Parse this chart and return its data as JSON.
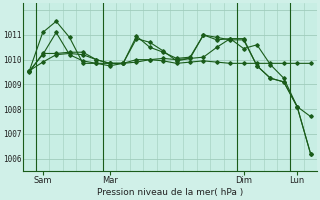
{
  "background_color": "#d0f0e8",
  "plot_bg_color": "#c8eee4",
  "grid_color": "#a0ccbc",
  "line_color": "#1a5c1a",
  "xlabel": "Pression niveau de la mer( hPa )",
  "ylim": [
    1005.5,
    1012.3
  ],
  "xlim": [
    -0.5,
    21.5
  ],
  "ytick_positions": [
    1006,
    1007,
    1008,
    1009,
    1010,
    1011
  ],
  "ytick_labels": [
    "1006",
    "1007",
    "1008",
    "1009",
    "1010",
    "1011"
  ],
  "xtick_positions": [
    1,
    6,
    16,
    20
  ],
  "xtick_labels": [
    "Sam",
    "Mar",
    "Dim",
    "Lun"
  ],
  "vlines_x": [
    0.5,
    5.5,
    15.5,
    19.5
  ],
  "num_xgrid": 22,
  "series": [
    [
      0,
      1009.55,
      1,
      1009.9,
      2,
      1010.2,
      3,
      1010.25,
      4,
      1010.2,
      5,
      1010.0,
      6,
      1009.85,
      7,
      1009.85,
      8,
      1009.9,
      9,
      1010.0,
      10,
      1009.95,
      11,
      1009.85,
      12,
      1009.9,
      13,
      1009.95,
      14,
      1009.9,
      15,
      1009.85,
      16,
      1009.85,
      17,
      1009.85,
      18,
      1009.85,
      19,
      1009.85,
      20,
      1009.85,
      21,
      1009.85
    ],
    [
      0,
      1009.5,
      1,
      1010.25,
      2,
      1010.25,
      3,
      1010.3,
      4,
      1010.3,
      5,
      1010.0,
      6,
      1009.85,
      7,
      1009.85,
      8,
      1010.0,
      9,
      1010.0,
      10,
      1010.05,
      11,
      1010.0,
      12,
      1010.05,
      13,
      1010.1,
      14,
      1010.5,
      15,
      1010.85,
      16,
      1010.45,
      17,
      1010.6,
      18,
      1009.8,
      19,
      1009.25,
      20,
      1008.1,
      21,
      1007.7
    ],
    [
      0,
      1009.55,
      1,
      1011.1,
      2,
      1011.55,
      3,
      1010.9,
      4,
      1009.85,
      5,
      1009.85,
      6,
      1009.75,
      7,
      1009.85,
      8,
      1010.85,
      9,
      1010.7,
      10,
      1010.35,
      11,
      1009.95,
      12,
      1010.05,
      13,
      1011.0,
      14,
      1010.8,
      15,
      1010.85,
      16,
      1010.85,
      17,
      1009.75,
      18,
      1009.25,
      19,
      1009.1,
      20,
      1008.1,
      21,
      1006.2
    ],
    [
      0,
      1009.55,
      1,
      1010.2,
      2,
      1011.1,
      3,
      1010.2,
      4,
      1009.95,
      5,
      1009.85,
      6,
      1009.85,
      7,
      1009.85,
      8,
      1010.95,
      9,
      1010.5,
      10,
      1010.3,
      11,
      1010.05,
      12,
      1010.1,
      13,
      1011.0,
      14,
      1010.9,
      15,
      1010.8,
      16,
      1010.8,
      17,
      1009.75,
      18,
      1009.25,
      19,
      1009.1,
      20,
      1008.1,
      21,
      1006.2
    ]
  ]
}
